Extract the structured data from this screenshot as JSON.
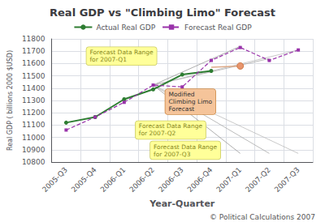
{
  "chart_data": {
    "type": "line",
    "title": "Real GDP vs \"Climbing Limo\" Forecast",
    "xlabel": "Year-Quarter",
    "ylabel": "Real GDP ( billions 2000 $USD)",
    "categories": [
      "2005-Q3",
      "2005-Q4",
      "2006-Q1",
      "2006-Q2",
      "2006-Q3",
      "2006-Q4",
      "2007-Q1",
      "2007-Q2",
      "2007-Q3"
    ],
    "series": [
      {
        "type": "range",
        "color": "#999999",
        "values": [
          null,
          null,
          null,
          11425,
          null,
          null,
          11740,
          null,
          null
        ]
      },
      {
        "type": "range",
        "color": "#999999",
        "values": [
          null,
          null,
          null,
          11425,
          null,
          null,
          10870,
          null,
          null
        ]
      },
      {
        "type": "range",
        "color": "#aaaaaa",
        "values": [
          null,
          null,
          null,
          11425,
          null,
          null,
          null,
          11640,
          null
        ]
      },
      {
        "type": "range",
        "color": "#aaaaaa",
        "values": [
          null,
          null,
          null,
          11425,
          null,
          null,
          null,
          10870,
          null
        ]
      },
      {
        "type": "range",
        "color": "#bbbbbb",
        "values": [
          null,
          null,
          null,
          11425,
          null,
          null,
          null,
          null,
          11710
        ]
      },
      {
        "type": "range",
        "color": "#bbbbbb",
        "values": [
          null,
          null,
          null,
          11425,
          null,
          null,
          null,
          null,
          10870
        ]
      },
      {
        "name": "Actual Real GDP",
        "type": "line",
        "color": "#2e7d32",
        "marker": "circle",
        "line_style": "solid",
        "values": [
          11120,
          11165,
          11310,
          11390,
          11510,
          11540,
          null,
          null,
          null
        ]
      },
      {
        "name": "Forecast Real GDP",
        "type": "line",
        "color": "#9933aa",
        "marker": "square",
        "line_style": "dashed",
        "values": [
          11060,
          11165,
          11285,
          11425,
          11410,
          11625,
          11730,
          11625,
          11710
        ]
      },
      {
        "type": "line",
        "color": "#ddaa88",
        "marker": "circle",
        "line_style": "solid",
        "values": [
          null,
          null,
          null,
          null,
          null,
          11570,
          11580,
          null,
          null
        ]
      }
    ],
    "annotations": [
      "Forecast Data Range\nfor 2007-Q1",
      "Forecast Data Range\nfor 2007-Q2",
      "Forecast Data Range\nfor 2007-Q3",
      "Modified\nClimbing Limo\nForecast",
      "© Political Calculations 2007"
    ],
    "ylim": [
      10800,
      11800
    ],
    "yticks": [
      10800,
      10900,
      11000,
      11100,
      11200,
      11300,
      11400,
      11500,
      11600,
      11700,
      11800
    ],
    "grid": true,
    "legend": "top"
  }
}
